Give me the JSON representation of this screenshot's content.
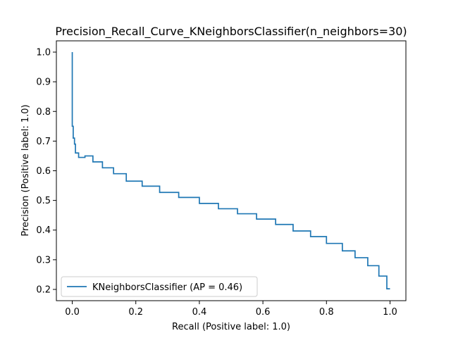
{
  "chart_data": {
    "type": "line",
    "title": "Precision_Recall_Curve_KNeighborsClassifier(n_neighbors=30)",
    "xlabel": "Recall (Positive label: 1.0)",
    "ylabel": "Precision (Positive label: 1.0)",
    "xlim": [
      -0.05,
      1.05
    ],
    "ylim": [
      0.162,
      1.038
    ],
    "xticks": [
      0.0,
      0.2,
      0.4,
      0.6,
      0.8,
      1.0
    ],
    "xtick_labels": [
      "0.0",
      "0.2",
      "0.4",
      "0.6",
      "0.8",
      "1.0"
    ],
    "yticks": [
      0.2,
      0.3,
      0.4,
      0.5,
      0.6,
      0.7,
      0.8,
      0.9,
      1.0
    ],
    "ytick_labels": [
      "0.2",
      "0.3",
      "0.4",
      "0.5",
      "0.6",
      "0.7",
      "0.8",
      "0.9",
      "1.0"
    ],
    "grid": false,
    "legend_position": "lower-left",
    "series": [
      {
        "name": "KNeighborsClassifier (AP = 0.46)",
        "color": "#1f77b4",
        "drawstyle": "steps-post",
        "recall": [
          0.0,
          0.0,
          0.003,
          0.007,
          0.01,
          0.02,
          0.04,
          0.065,
          0.095,
          0.13,
          0.17,
          0.22,
          0.275,
          0.335,
          0.4,
          0.46,
          0.52,
          0.58,
          0.64,
          0.695,
          0.75,
          0.8,
          0.85,
          0.89,
          0.93,
          0.965,
          0.99,
          1.0
        ],
        "precision": [
          1.0,
          0.75,
          0.71,
          0.69,
          0.66,
          0.645,
          0.65,
          0.63,
          0.61,
          0.59,
          0.565,
          0.548,
          0.527,
          0.51,
          0.49,
          0.472,
          0.455,
          0.437,
          0.419,
          0.397,
          0.378,
          0.355,
          0.33,
          0.307,
          0.28,
          0.245,
          0.202,
          0.202
        ]
      }
    ]
  }
}
